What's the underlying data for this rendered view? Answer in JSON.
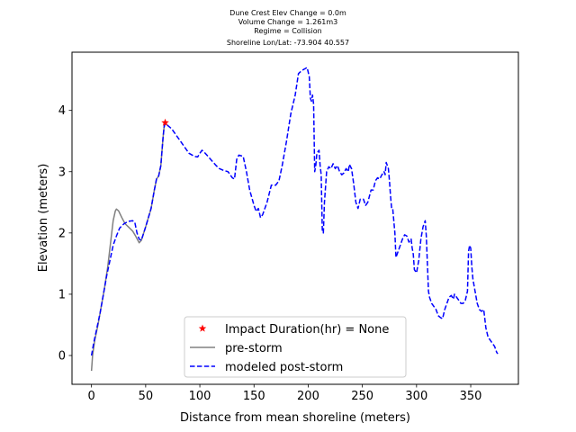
{
  "chart_data": {
    "type": "line",
    "title_lines": [
      "Dune Crest Elev Change = 0.0m",
      "Volume Change = 1.261m3",
      "Regime = Collision",
      "Shoreline Lon/Lat: -73.904 40.557"
    ],
    "xlabel": "Distance from mean shoreline (meters)",
    "ylabel": "Elevation (meters)",
    "xlim": [
      -18,
      394
    ],
    "ylim": [
      -0.47,
      4.95
    ],
    "x_ticks": [
      0,
      50,
      100,
      150,
      200,
      250,
      300,
      350
    ],
    "y_ticks": [
      0,
      1,
      2,
      3,
      4
    ],
    "grid": false,
    "legend_position": "bottom-center",
    "series": [
      {
        "name": "pre-storm",
        "style": "solid",
        "color": "#808080",
        "points": [
          [
            0,
            -0.25
          ],
          [
            1,
            0.0
          ],
          [
            3,
            0.25
          ],
          [
            6,
            0.5
          ],
          [
            9,
            0.8
          ],
          [
            12,
            1.1
          ],
          [
            15,
            1.45
          ],
          [
            18,
            1.9
          ],
          [
            20,
            2.2
          ],
          [
            22,
            2.36
          ],
          [
            23,
            2.39
          ],
          [
            25,
            2.36
          ],
          [
            28,
            2.25
          ],
          [
            31,
            2.15
          ],
          [
            34,
            2.1
          ],
          [
            38,
            2.03
          ],
          [
            41,
            1.94
          ],
          [
            44,
            1.84
          ],
          [
            46,
            1.88
          ],
          [
            50,
            2.1
          ],
          [
            55,
            2.4
          ],
          [
            58,
            2.7
          ],
          [
            60,
            2.88
          ],
          [
            62,
            2.93
          ],
          [
            64,
            3.1
          ],
          [
            66,
            3.55
          ],
          [
            67,
            3.73
          ],
          [
            68,
            3.79
          ]
        ]
      },
      {
        "name": "modeled post-storm",
        "style": "dashed",
        "color": "#0000ff",
        "points": [
          [
            0,
            0.0
          ],
          [
            2,
            0.2
          ],
          [
            5,
            0.45
          ],
          [
            8,
            0.7
          ],
          [
            11,
            1.0
          ],
          [
            14,
            1.3
          ],
          [
            17,
            1.55
          ],
          [
            20,
            1.8
          ],
          [
            23,
            1.95
          ],
          [
            26,
            2.08
          ],
          [
            30,
            2.15
          ],
          [
            34,
            2.19
          ],
          [
            38,
            2.2
          ],
          [
            40,
            2.17
          ],
          [
            42,
            2.0
          ],
          [
            44,
            1.9
          ],
          [
            46,
            1.88
          ],
          [
            50,
            2.1
          ],
          [
            55,
            2.4
          ],
          [
            58,
            2.7
          ],
          [
            60,
            2.88
          ],
          [
            62,
            2.93
          ],
          [
            64,
            3.1
          ],
          [
            66,
            3.55
          ],
          [
            67,
            3.73
          ],
          [
            68,
            3.79
          ],
          [
            70,
            3.76
          ],
          [
            74,
            3.7
          ],
          [
            78,
            3.6
          ],
          [
            82,
            3.5
          ],
          [
            86,
            3.4
          ],
          [
            90,
            3.3
          ],
          [
            95,
            3.25
          ],
          [
            98,
            3.24
          ],
          [
            100,
            3.3
          ],
          [
            102,
            3.35
          ],
          [
            105,
            3.3
          ],
          [
            110,
            3.2
          ],
          [
            115,
            3.1
          ],
          [
            118,
            3.05
          ],
          [
            122,
            3.02
          ],
          [
            126,
            3.0
          ],
          [
            130,
            2.9
          ],
          [
            132,
            2.88
          ],
          [
            134,
            3.2
          ],
          [
            136,
            3.27
          ],
          [
            140,
            3.25
          ],
          [
            143,
            3.0
          ],
          [
            146,
            2.7
          ],
          [
            150,
            2.45
          ],
          [
            152,
            2.35
          ],
          [
            154,
            2.4
          ],
          [
            156,
            2.25
          ],
          [
            158,
            2.3
          ],
          [
            162,
            2.5
          ],
          [
            166,
            2.78
          ],
          [
            170,
            2.78
          ],
          [
            173,
            2.85
          ],
          [
            176,
            3.1
          ],
          [
            180,
            3.5
          ],
          [
            184,
            3.95
          ],
          [
            188,
            4.25
          ],
          [
            191,
            4.6
          ],
          [
            194,
            4.65
          ],
          [
            197,
            4.68
          ],
          [
            199,
            4.7
          ],
          [
            201,
            4.55
          ],
          [
            202,
            4.2
          ],
          [
            203,
            4.15
          ],
          [
            204,
            4.25
          ],
          [
            205,
            4.1
          ],
          [
            206,
            3.0
          ],
          [
            207,
            3.1
          ],
          [
            208,
            3.3
          ],
          [
            210,
            3.35
          ],
          [
            211,
            3.1
          ],
          [
            212,
            2.95
          ],
          [
            213,
            2.05
          ],
          [
            214,
            2.0
          ],
          [
            215,
            2.5
          ],
          [
            217,
            3.0
          ],
          [
            219,
            3.08
          ],
          [
            221,
            3.05
          ],
          [
            223,
            3.13
          ],
          [
            225,
            3.05
          ],
          [
            227,
            3.1
          ],
          [
            229,
            3.0
          ],
          [
            231,
            2.95
          ],
          [
            233,
            2.98
          ],
          [
            235,
            3.05
          ],
          [
            237,
            3.0
          ],
          [
            238,
            3.12
          ],
          [
            240,
            3.05
          ],
          [
            242,
            2.8
          ],
          [
            244,
            2.5
          ],
          [
            246,
            2.4
          ],
          [
            248,
            2.55
          ],
          [
            251,
            2.55
          ],
          [
            253,
            2.45
          ],
          [
            255,
            2.5
          ],
          [
            258,
            2.7
          ],
          [
            260,
            2.7
          ],
          [
            262,
            2.85
          ],
          [
            264,
            2.9
          ],
          [
            266,
            2.88
          ],
          [
            268,
            2.95
          ],
          [
            270,
            3.0
          ],
          [
            271,
            2.95
          ],
          [
            272,
            3.15
          ],
          [
            274,
            3.05
          ],
          [
            275,
            2.85
          ],
          [
            276,
            2.6
          ],
          [
            277,
            2.4
          ],
          [
            278,
            2.4
          ],
          [
            279,
            2.2
          ],
          [
            280,
            2.0
          ],
          [
            281,
            1.6
          ],
          [
            283,
            1.7
          ],
          [
            285,
            1.8
          ],
          [
            287,
            1.9
          ],
          [
            289,
            1.97
          ],
          [
            291,
            1.95
          ],
          [
            293,
            1.85
          ],
          [
            295,
            1.9
          ],
          [
            296,
            1.75
          ],
          [
            297,
            1.65
          ],
          [
            298,
            1.4
          ],
          [
            300,
            1.35
          ],
          [
            302,
            1.55
          ],
          [
            304,
            1.9
          ],
          [
            306,
            2.1
          ],
          [
            308,
            2.2
          ],
          [
            309,
            1.95
          ],
          [
            310,
            1.5
          ],
          [
            311,
            1.05
          ],
          [
            312,
            0.95
          ],
          [
            314,
            0.85
          ],
          [
            316,
            0.8
          ],
          [
            318,
            0.75
          ],
          [
            320,
            0.65
          ],
          [
            322,
            0.62
          ],
          [
            324,
            0.6
          ],
          [
            326,
            0.75
          ],
          [
            328,
            0.85
          ],
          [
            330,
            0.95
          ],
          [
            332,
            0.98
          ],
          [
            334,
            0.92
          ],
          [
            335,
            1.0
          ],
          [
            337,
            0.95
          ],
          [
            339,
            0.9
          ],
          [
            341,
            0.85
          ],
          [
            343,
            0.85
          ],
          [
            345,
            0.9
          ],
          [
            347,
            1.05
          ],
          [
            348,
            1.7
          ],
          [
            349,
            1.8
          ],
          [
            350,
            1.75
          ],
          [
            351,
            1.45
          ],
          [
            352,
            1.25
          ],
          [
            354,
            1.05
          ],
          [
            356,
            0.85
          ],
          [
            358,
            0.75
          ],
          [
            360,
            0.72
          ],
          [
            362,
            0.75
          ],
          [
            364,
            0.45
          ],
          [
            366,
            0.3
          ],
          [
            368,
            0.25
          ],
          [
            370,
            0.2
          ],
          [
            372,
            0.15
          ],
          [
            374,
            0.05
          ],
          [
            375,
            0.03
          ]
        ]
      }
    ],
    "markers": [
      {
        "name": "Impact Duration(hr) = None",
        "x": 68,
        "y": 3.8,
        "symbol": "star",
        "color": "#ff0000"
      }
    ]
  },
  "legend": {
    "items": [
      {
        "label": "Impact Duration(hr) = None",
        "kind": "star",
        "color": "#ff0000"
      },
      {
        "label": "pre-storm",
        "kind": "solid",
        "color": "#808080"
      },
      {
        "label": "modeled post-storm",
        "kind": "dashed",
        "color": "#0000ff"
      }
    ]
  }
}
